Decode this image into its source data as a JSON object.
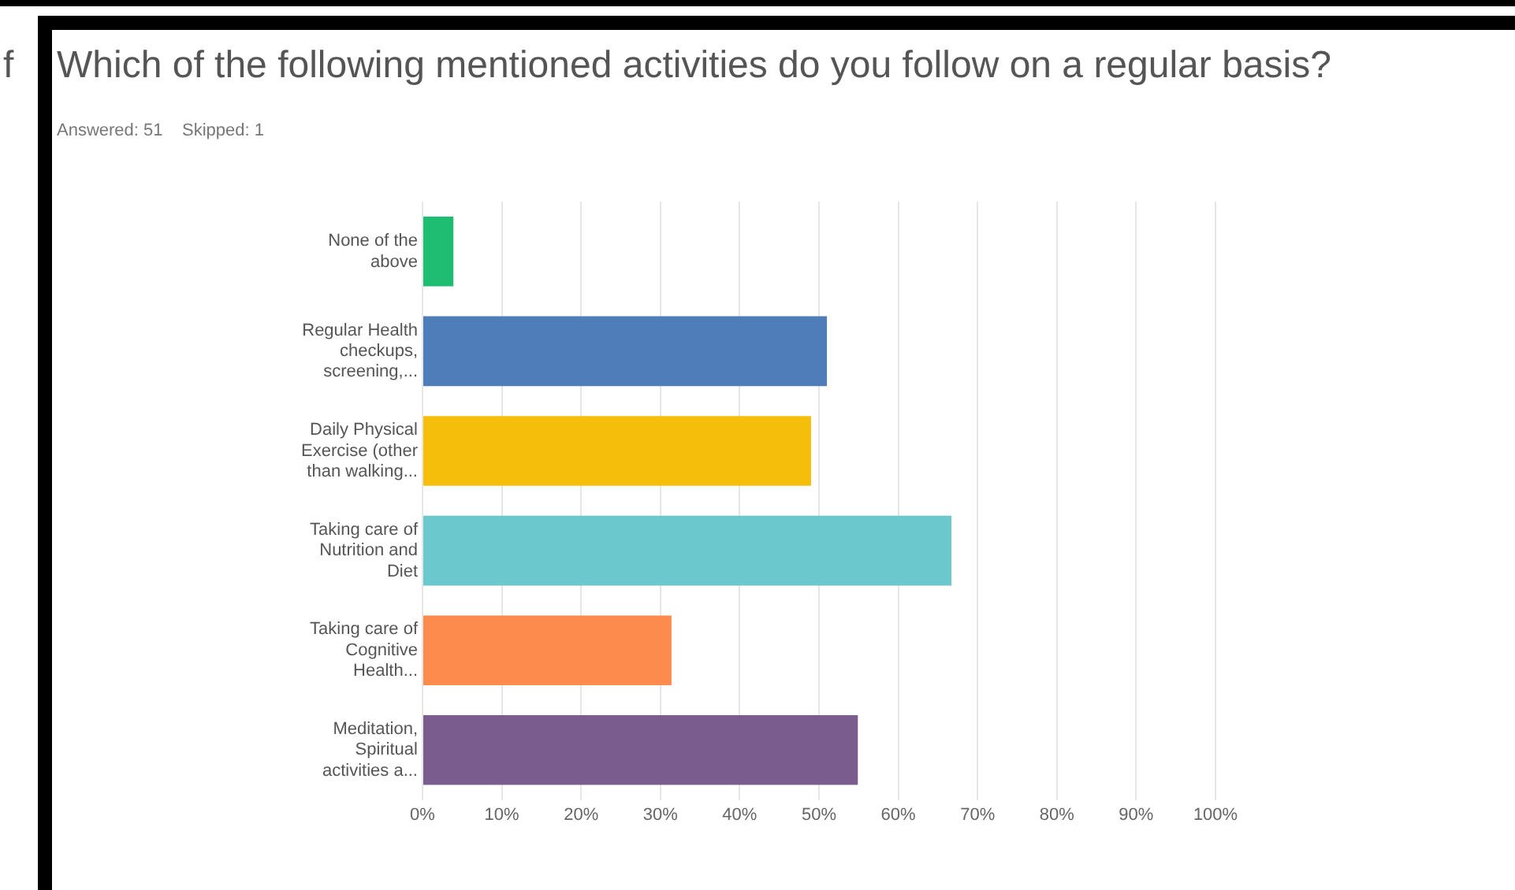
{
  "chart_data": {
    "type": "bar",
    "orientation": "horizontal",
    "title": "Which of the following mentioned activities do you follow on a regular basis?",
    "subtitle": "Answered: 51    Skipped: 1",
    "categories": [
      "None of the above",
      "Regular Health checkups, screening,...",
      "Daily Physical Exercise (other than walking...",
      "Taking care of Nutrition and Diet",
      "Taking care of Cognitive Health...",
      "Meditation, Spiritual activities a..."
    ],
    "values": [
      3.9,
      51,
      49,
      66.7,
      31.4,
      54.9
    ],
    "colors": [
      "#1fbd72",
      "#4f7db9",
      "#f5be0b",
      "#6bc8cc",
      "#fe8b4e",
      "#7a5c8f"
    ],
    "xlim": [
      0,
      100
    ],
    "xticks": [
      {
        "value": 0,
        "label": "0%"
      },
      {
        "value": 10,
        "label": "10%"
      },
      {
        "value": 20,
        "label": "20%"
      },
      {
        "value": 30,
        "label": "30%"
      },
      {
        "value": 40,
        "label": "40%"
      },
      {
        "value": 50,
        "label": "50%"
      },
      {
        "value": 60,
        "label": "60%"
      },
      {
        "value": 70,
        "label": "70%"
      },
      {
        "value": 80,
        "label": "80%"
      },
      {
        "value": 90,
        "label": "90%"
      },
      {
        "value": 100,
        "label": "100%"
      }
    ],
    "grid": "x",
    "legend": false,
    "annotations": [
      "f"
    ]
  }
}
